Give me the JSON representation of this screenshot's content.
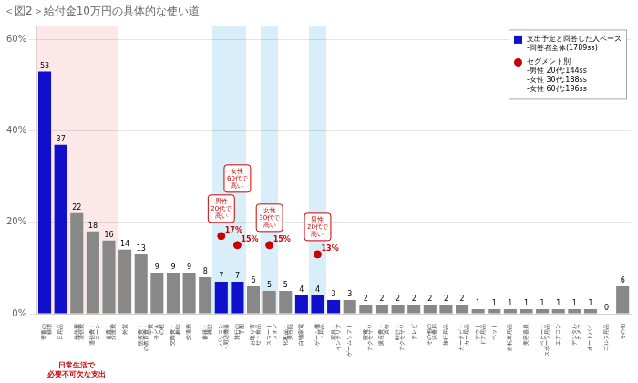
{
  "chart_data": {
    "type": "bar",
    "title": "＜図2＞給付金10万円の具体的な使い道",
    "categories": [
      "豊蓄の\n積増",
      "日用品",
      "光熱費\n通信費",
      "通信費・\nローン",
      "食費・\n介護費",
      "外貨",
      "医療費・\nの教育費・\n学費",
      "子ども\nの税",
      "交際費・\n趣味",
      "交通費",
      "書籍・\n雑誌",
      "パソコン\n・周辺機器",
      "旅行の\n手配",
      "お取り寄\nせ・食品",
      "スマート\nフォン",
      "化粧品・\n美容院",
      "白物家電",
      "ゲーム機\n・用品",
      "家具・\nインテリア",
      "ゲームソフト",
      "家電・\nアクセサリ",
      "講座費・\n資格",
      "時計・\nアクセサリ",
      "テレビ",
      "その他の\n活費用",
      "旅行用品",
      "カーナビ・\nカー用品",
      "アウト\nドア用品",
      "ペット",
      "自転車用品",
      "美容器具",
      "ベビー・\nスポーツ用品",
      "エアコン",
      "デジタル\nカメラ",
      "オートバイ",
      "ゴルフ用品",
      "その他"
    ],
    "series": [
      {
        "name": "支出予定と回答した人ベース\n-回答者全体(1789ss)",
        "type": "bar",
        "color": "#1010cc",
        "colors": [
          "#1010cc",
          "#1010cc",
          "#888888",
          "#888888",
          "#888888",
          "#888888",
          "#888888",
          "#888888",
          "#888888",
          "#888888",
          "#888888",
          "#1010cc",
          "#1010cc",
          "#888888",
          "#888888",
          "#888888",
          "#1010cc",
          "#1010cc",
          "#1010cc",
          "#888888",
          "#888888",
          "#888888",
          "#888888",
          "#888888",
          "#888888",
          "#888888",
          "#888888",
          "#888888",
          "#888888",
          "#888888",
          "#888888",
          "#888888",
          "#888888",
          "#888888",
          "#888888",
          "#888888",
          "#888888"
        ],
        "values": [
          53,
          37,
          22,
          18,
          16,
          14,
          13,
          9,
          9,
          9,
          8,
          7,
          7,
          6,
          5,
          5,
          4,
          4,
          3,
          3,
          2,
          2,
          2,
          2,
          2,
          2,
          2,
          1,
          1,
          1,
          1,
          1,
          1,
          1,
          1,
          0,
          6
        ]
      },
      {
        "name": "セグメント別\n-男性 20代:144ss\n-女性 30代:188ss\n-女性 60代:196ss",
        "type": "scatter",
        "marker": "circle",
        "color": "#cc0000",
        "values": [
          null,
          null,
          null,
          null,
          null,
          null,
          null,
          null,
          null,
          null,
          null,
          17,
          15,
          null,
          15,
          null,
          null,
          13,
          null,
          null,
          null,
          null,
          null,
          null,
          null,
          null,
          null,
          null,
          null,
          null,
          null,
          null,
          null,
          null,
          null,
          null,
          null
        ],
        "value_labels": [
          null,
          null,
          null,
          null,
          null,
          null,
          null,
          null,
          null,
          null,
          null,
          "17%",
          "15%",
          null,
          "15%",
          null,
          null,
          "13%",
          null,
          null,
          null,
          null,
          null,
          null,
          null,
          null,
          null,
          null,
          null,
          null,
          null,
          null,
          null,
          null,
          null,
          null,
          null
        ]
      }
    ],
    "annotations": [
      {
        "category": "パソコン\n・周辺機器",
        "text": "男性\n20代で\n高い",
        "color": "#cc0000"
      },
      {
        "category": "旅行の\n手配",
        "text": "女性\n60代で\n高い",
        "color": "#cc0000"
      },
      {
        "category": "スマート\nフォン",
        "text": "女性\n30代で\n高い",
        "color": "#cc0000"
      },
      {
        "category": "ゲーム機\n・用品",
        "text": "男性\n20代で\n高い",
        "color": "#cc0000"
      }
    ],
    "bands": [
      {
        "categories": [
          "豊蓄の\n積増",
          "日用品",
          "光熱費\n通信費",
          "通信費・\nローン",
          "食費・\n介護費"
        ],
        "color": "#fce8e8",
        "note": "日常生活で\n必要不可欠な支出",
        "note_color": "#cc0000"
      },
      {
        "categories": [
          "パソコン\n・周辺機器",
          "旅行の\n手配",
          "スマート\nフォン",
          "ゲーム機\n・用品"
        ],
        "color": "#d8eef8"
      }
    ],
    "ylim": [
      0,
      63
    ],
    "yticks": [
      {
        "value": 0,
        "label": "0%"
      },
      {
        "value": 20,
        "label": "20%"
      },
      {
        "value": 40,
        "label": "40%"
      },
      {
        "value": 60,
        "label": "60%"
      }
    ],
    "grid": true,
    "data_labels": true,
    "legend": "upper right"
  }
}
